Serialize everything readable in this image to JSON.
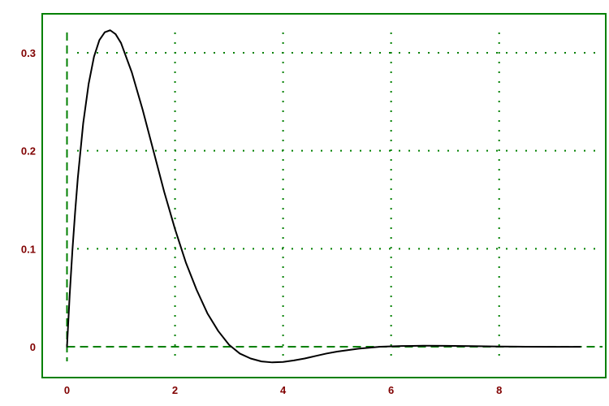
{
  "chart_data": {
    "type": "line",
    "title": "",
    "xlabel": "",
    "ylabel": "",
    "xlim": [
      0,
      9.5
    ],
    "ylim": [
      -0.03,
      0.33
    ],
    "x_ticks": [
      0,
      2,
      4,
      6,
      8
    ],
    "y_ticks": [
      0,
      0.1,
      0.2,
      0.3
    ],
    "x_tick_labels": [
      "0",
      "2",
      "4",
      "6",
      "8"
    ],
    "y_tick_labels": [
      "0",
      "0.1",
      "0.2",
      "0.3"
    ],
    "grid": true,
    "legend": "none",
    "colors": {
      "frame": "#008000",
      "grid": "#008000",
      "tick_labels": "#800000",
      "line": "#000000",
      "background": "#ffffff"
    },
    "series": [
      {
        "values": [
          [
            0.0,
            0.0
          ],
          [
            0.05,
            0.053
          ],
          [
            0.1,
            0.098
          ],
          [
            0.15,
            0.137
          ],
          [
            0.2,
            0.172
          ],
          [
            0.3,
            0.228
          ],
          [
            0.4,
            0.268
          ],
          [
            0.5,
            0.296
          ],
          [
            0.6,
            0.313
          ],
          [
            0.7,
            0.321
          ],
          [
            0.8,
            0.323
          ],
          [
            0.9,
            0.319
          ],
          [
            1.0,
            0.31
          ],
          [
            1.2,
            0.28
          ],
          [
            1.4,
            0.242
          ],
          [
            1.6,
            0.2
          ],
          [
            1.8,
            0.158
          ],
          [
            2.0,
            0.12
          ],
          [
            2.2,
            0.086
          ],
          [
            2.4,
            0.058
          ],
          [
            2.6,
            0.034
          ],
          [
            2.8,
            0.016
          ],
          [
            3.0,
            0.002
          ],
          [
            3.2,
            -0.007
          ],
          [
            3.4,
            -0.012
          ],
          [
            3.6,
            -0.015
          ],
          [
            3.8,
            -0.016
          ],
          [
            4.0,
            -0.0155
          ],
          [
            4.2,
            -0.014
          ],
          [
            4.4,
            -0.012
          ],
          [
            4.6,
            -0.0095
          ],
          [
            4.8,
            -0.007
          ],
          [
            5.0,
            -0.005
          ],
          [
            5.4,
            -0.002
          ],
          [
            5.8,
            0.0
          ],
          [
            6.2,
            0.0007
          ],
          [
            6.6,
            0.001
          ],
          [
            7.0,
            0.0009
          ],
          [
            7.5,
            0.0006
          ],
          [
            8.0,
            0.0002
          ],
          [
            8.5,
            0.0
          ],
          [
            9.0,
            -0.0001
          ],
          [
            9.5,
            -0.0001
          ]
        ]
      }
    ]
  }
}
